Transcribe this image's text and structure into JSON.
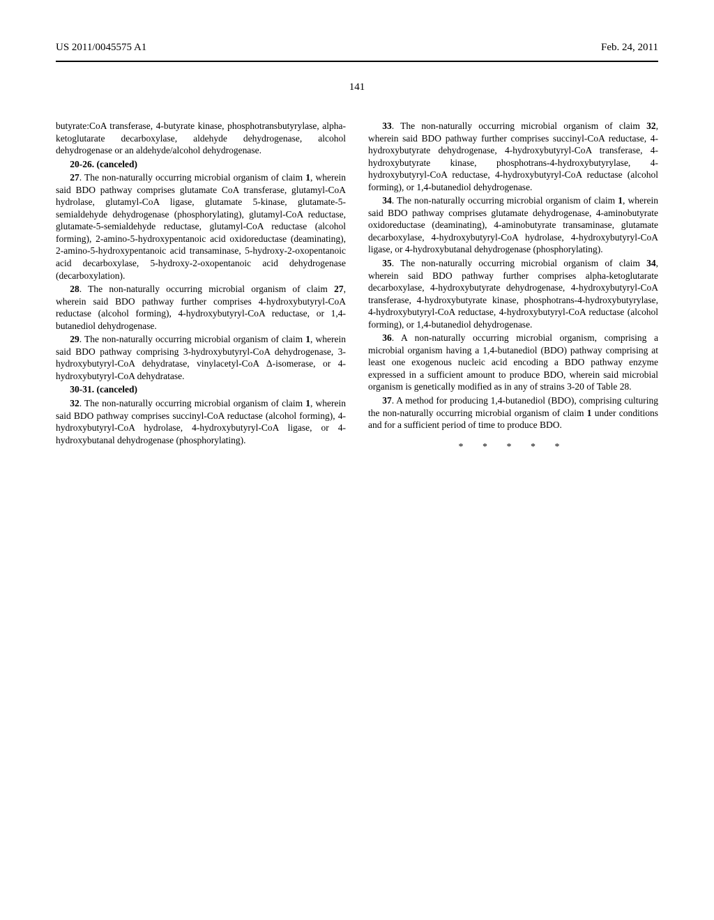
{
  "header": {
    "doc_number": "US 2011/0045575 A1",
    "pub_date": "Feb. 24, 2011"
  },
  "page_number": "141",
  "claims": {
    "c19_tail": "butyrate:CoA transferase, 4-butyrate kinase, phosphotransbutyrylase, alpha-ketoglutarate decarboxylase, aldehyde dehydrogenase, alcohol dehydrogenase or an aldehyde/alcohol dehydrogenase.",
    "c20_26": "20-26. (canceled)",
    "c27": "27. The non-naturally occurring microbial organism of claim 1, wherein said BDO pathway comprises glutamate CoA transferase, glutamyl-CoA hydrolase, glutamyl-CoA ligase, glutamate 5-kinase, glutamate-5-semialdehyde dehydrogenase (phosphorylating), glutamyl-CoA reductase, glutamate-5-semialdehyde reductase, glutamyl-CoA reductase (alcohol forming), 2-amino-5-hydroxypentanoic acid oxidoreductase (deaminating), 2-amino-5-hydroxypentanoic acid transaminase, 5-hydroxy-2-oxopentanoic acid decarboxylase, 5-hydroxy-2-oxopentanoic acid dehydrogenase (decarboxylation).",
    "c28": "28. The non-naturally occurring microbial organism of claim 27, wherein said BDO pathway further comprises 4-hydroxybutyryl-CoA reductase (alcohol forming), 4-hydroxybutyryl-CoA reductase, or 1,4-butanediol dehydrogenase.",
    "c29": "29. The non-naturally occurring microbial organism of claim 1, wherein said BDO pathway comprising 3-hydroxybutyryl-CoA dehydrogenase, 3-hydroxybutyryl-CoA dehydratase, vinylacetyl-CoA Δ-isomerase, or 4-hydroxybutyryl-CoA dehydratase.",
    "c30_31": "30-31. (canceled)",
    "c32": "32. The non-naturally occurring microbial organism of claim 1, wherein said BDO pathway comprises succinyl-CoA reductase (alcohol forming), 4-hydroxybutyryl-CoA hydrolase, 4-hydroxybutyryl-CoA ligase, or 4-hydroxybutanal dehydrogenase (phosphorylating).",
    "c33": "33. The non-naturally occurring microbial organism of claim 32, wherein said BDO pathway further comprises succinyl-CoA reductase, 4-hydroxybutyrate dehydrogenase, 4-hydroxybutyryl-CoA transferase, 4-hydroxybutyrate kinase, phosphotrans-4-hydroxybutyrylase, 4-hydroxybutyryl-CoA reductase, 4-hydroxybutyryl-CoA reductase (alcohol forming), or 1,4-butanediol dehydrogenase.",
    "c34": "34. The non-naturally occurring microbial organism of claim 1, wherein said BDO pathway comprises glutamate dehydrogenase, 4-aminobutyrate oxidoreductase (deaminating), 4-aminobutyrate transaminase, glutamate decarboxylase, 4-hydroxybutyryl-CoA hydrolase, 4-hydroxybutyryl-CoA ligase, or 4-hydroxybutanal dehydrogenase (phosphorylating).",
    "c35": "35. The non-naturally occurring microbial organism of claim 34, wherein said BDO pathway further comprises alpha-ketoglutarate decarboxylase, 4-hydroxybutyrate dehydrogenase, 4-hydroxybutyryl-CoA transferase, 4-hydroxybutyrate kinase, phosphotrans-4-hydroxybutyrylase, 4-hydroxybutyryl-CoA reductase, 4-hydroxybutyryl-CoA reductase (alcohol forming), or 1,4-butanediol dehydrogenase.",
    "c36": "36. A non-naturally occurring microbial organism, comprising a microbial organism having a 1,4-butanediol (BDO) pathway comprising at least one exogenous nucleic acid encoding a BDO pathway enzyme expressed in a sufficient amount to produce BDO, wherein said microbial organism is genetically modified as in any of strains 3-20 of Table 28.",
    "c37": "37. A method for producing 1,4-butanediol (BDO), comprising culturing the non-naturally occurring microbial organism of claim 1 under conditions and for a sufficient period of time to produce BDO."
  },
  "end_marks": "* * * * *"
}
